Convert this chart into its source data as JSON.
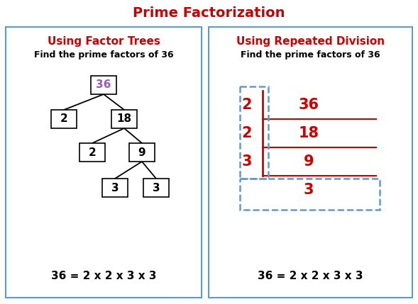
{
  "title": "Prime Factorization",
  "title_color": "#cc0000",
  "title_fontsize": 14,
  "left_heading": "Using Factor Trees",
  "right_heading": "Using Repeated Division",
  "heading_color": "#cc0000",
  "heading_fontsize": 11,
  "subheading": "Find the prime factors of 36",
  "subheading_fontsize": 9,
  "equation": "36 = 2 x 2 x 3 x 3",
  "equation_fontsize": 11,
  "box_border_color": "#5b9bd5",
  "background_color": "#ffffff",
  "node_36_color": "#9b59b6",
  "division_color": "#cc0000",
  "dashed_box_color": "#5b9bd5",
  "fig_width": 5.89,
  "fig_height": 4.29,
  "dpi": 100
}
